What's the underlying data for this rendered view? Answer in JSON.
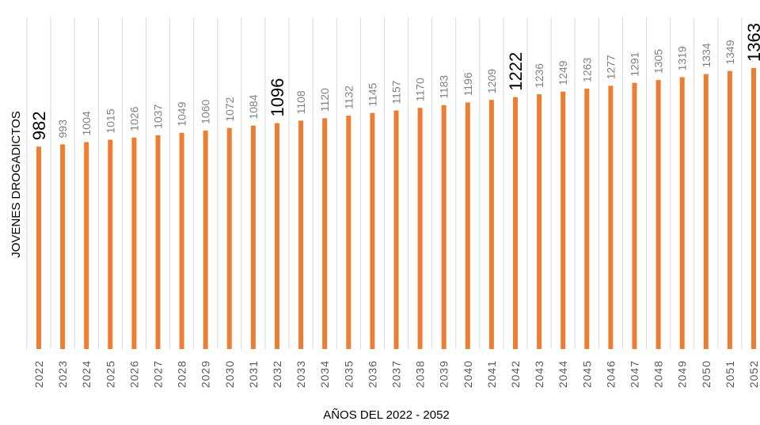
{
  "chart_data": {
    "type": "bar",
    "xlabel": "AÑOS DEL 2022 - 2052",
    "ylabel": "JOVENES DROGADICTOS",
    "grid": "vertical",
    "colors": {
      "bar": "#ED7D31",
      "grid": "#D9D9D9"
    },
    "categories": [
      "2022",
      "2023",
      "2024",
      "2025",
      "2026",
      "2027",
      "2028",
      "2029",
      "2030",
      "2031",
      "2032",
      "2033",
      "2034",
      "2035",
      "2036",
      "2037",
      "2038",
      "2039",
      "2040",
      "2041",
      "2042",
      "2043",
      "2044",
      "2045",
      "2046",
      "2047",
      "2048",
      "2049",
      "2050",
      "2051",
      "2052"
    ],
    "values": [
      982,
      993,
      1004,
      1015,
      1026,
      1037,
      1049,
      1060,
      1072,
      1084,
      1096,
      1108,
      1120,
      1132,
      1145,
      1157,
      1170,
      1183,
      1196,
      1209,
      1222,
      1236,
      1249,
      1263,
      1277,
      1291,
      1305,
      1319,
      1334,
      1349,
      1363
    ],
    "highlighted_labels": [
      "2022",
      "2032",
      "2042",
      "2052"
    ]
  }
}
